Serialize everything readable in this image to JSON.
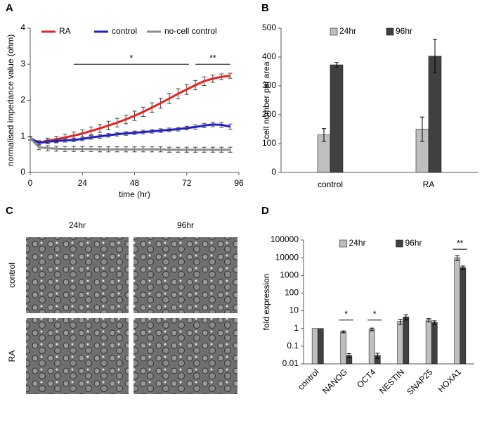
{
  "chart_data": [
    {
      "panel": "A",
      "type": "line",
      "xlabel": "time (hr)",
      "ylabel": "normalised impedance value (ohm)",
      "xlim": [
        0,
        96
      ],
      "xticks": [
        0,
        24,
        48,
        72,
        96
      ],
      "ylim": [
        0,
        4
      ],
      "yticks": [
        0,
        1,
        2,
        3,
        4
      ],
      "legend": "top",
      "x": [
        0,
        4,
        8,
        12,
        16,
        20,
        24,
        28,
        32,
        36,
        40,
        44,
        48,
        52,
        56,
        60,
        64,
        68,
        72,
        76,
        80,
        84,
        88,
        92
      ],
      "series": [
        {
          "name": "RA",
          "color": "#e8221e",
          "values": [
            0.95,
            0.82,
            0.88,
            0.92,
            0.97,
            1.02,
            1.08,
            1.15,
            1.22,
            1.3,
            1.38,
            1.47,
            1.57,
            1.68,
            1.8,
            1.92,
            2.05,
            2.18,
            2.3,
            2.42,
            2.53,
            2.6,
            2.65,
            2.68
          ],
          "errors": [
            0.05,
            0.06,
            0.07,
            0.08,
            0.09,
            0.1,
            0.1,
            0.11,
            0.11,
            0.12,
            0.12,
            0.12,
            0.13,
            0.13,
            0.13,
            0.14,
            0.14,
            0.14,
            0.14,
            0.13,
            0.12,
            0.1,
            0.08,
            0.07
          ]
        },
        {
          "name": "control",
          "color": "#1f1fc8",
          "values": [
            0.95,
            0.82,
            0.85,
            0.87,
            0.89,
            0.9,
            0.93,
            0.97,
            1.0,
            1.03,
            1.06,
            1.08,
            1.1,
            1.12,
            1.14,
            1.16,
            1.18,
            1.2,
            1.23,
            1.26,
            1.3,
            1.33,
            1.32,
            1.27
          ],
          "errors": [
            0.05,
            0.05,
            0.05,
            0.05,
            0.05,
            0.05,
            0.05,
            0.05,
            0.05,
            0.05,
            0.05,
            0.05,
            0.05,
            0.05,
            0.05,
            0.05,
            0.05,
            0.05,
            0.05,
            0.06,
            0.06,
            0.06,
            0.07,
            0.07
          ]
        },
        {
          "name": "no-cell control",
          "color": "#8c8c8c",
          "values": [
            0.95,
            0.7,
            0.67,
            0.66,
            0.65,
            0.65,
            0.65,
            0.65,
            0.64,
            0.64,
            0.64,
            0.64,
            0.64,
            0.64,
            0.64,
            0.64,
            0.63,
            0.63,
            0.63,
            0.63,
            0.63,
            0.63,
            0.63,
            0.63
          ],
          "errors": [
            0.05,
            0.07,
            0.07,
            0.07,
            0.07,
            0.07,
            0.07,
            0.07,
            0.07,
            0.07,
            0.07,
            0.07,
            0.07,
            0.07,
            0.07,
            0.07,
            0.07,
            0.07,
            0.07,
            0.07,
            0.07,
            0.07,
            0.07,
            0.07
          ]
        }
      ],
      "annotations": [
        {
          "text": "*",
          "x": [
            20,
            73
          ],
          "y": 3.0
        },
        {
          "text": "**",
          "x": [
            76,
            92
          ],
          "y": 3.0
        }
      ]
    },
    {
      "panel": "B",
      "type": "bar",
      "ylabel": "cell number per area",
      "categories": [
        "control",
        "RA"
      ],
      "ylim": [
        0,
        500
      ],
      "yticks": [
        0,
        100,
        200,
        300,
        400,
        500
      ],
      "legend": "top",
      "series": [
        {
          "name": "24hr",
          "color": "#bfbfbf",
          "values": [
            130,
            150
          ],
          "errors": [
            22,
            42
          ]
        },
        {
          "name": "96hr",
          "color": "#404040",
          "values": [
            373,
            403
          ],
          "errors": [
            8,
            58
          ]
        }
      ]
    },
    {
      "panel": "D",
      "type": "bar",
      "ylabel": "fold expression",
      "log_y": true,
      "rotate_x_labels": true,
      "categories": [
        "control",
        "NANOG",
        "OCT4",
        "NESTIN",
        "SNAP25",
        "HOXA1"
      ],
      "ylim": [
        0.01,
        100000
      ],
      "yticks": [
        0.01,
        0.1,
        1,
        10,
        100,
        1000,
        10000,
        100000
      ],
      "legend": "top",
      "series": [
        {
          "name": "24hr",
          "color": "#bfbfbf",
          "values": [
            1,
            0.65,
            0.9,
            2.5,
            3,
            10000
          ],
          "errors": [
            null,
            0.08,
            0.15,
            0.8,
            0.6,
            3000
          ]
        },
        {
          "name": "96hr",
          "color": "#404040",
          "values": [
            1,
            0.03,
            0.03,
            4.5,
            2.2,
            2800
          ],
          "errors": [
            null,
            0.008,
            0.01,
            1.5,
            0.5,
            600
          ]
        }
      ],
      "annotations": [
        {
          "text": "*",
          "category": 1,
          "y": 3
        },
        {
          "text": "*",
          "category": 2,
          "y": 3
        },
        {
          "text": "**",
          "category": 5,
          "y": 30000
        }
      ]
    }
  ],
  "image_panel": {
    "panel": "C",
    "columns": [
      "24hr",
      "96hr"
    ],
    "rows": [
      "control",
      "RA"
    ]
  }
}
